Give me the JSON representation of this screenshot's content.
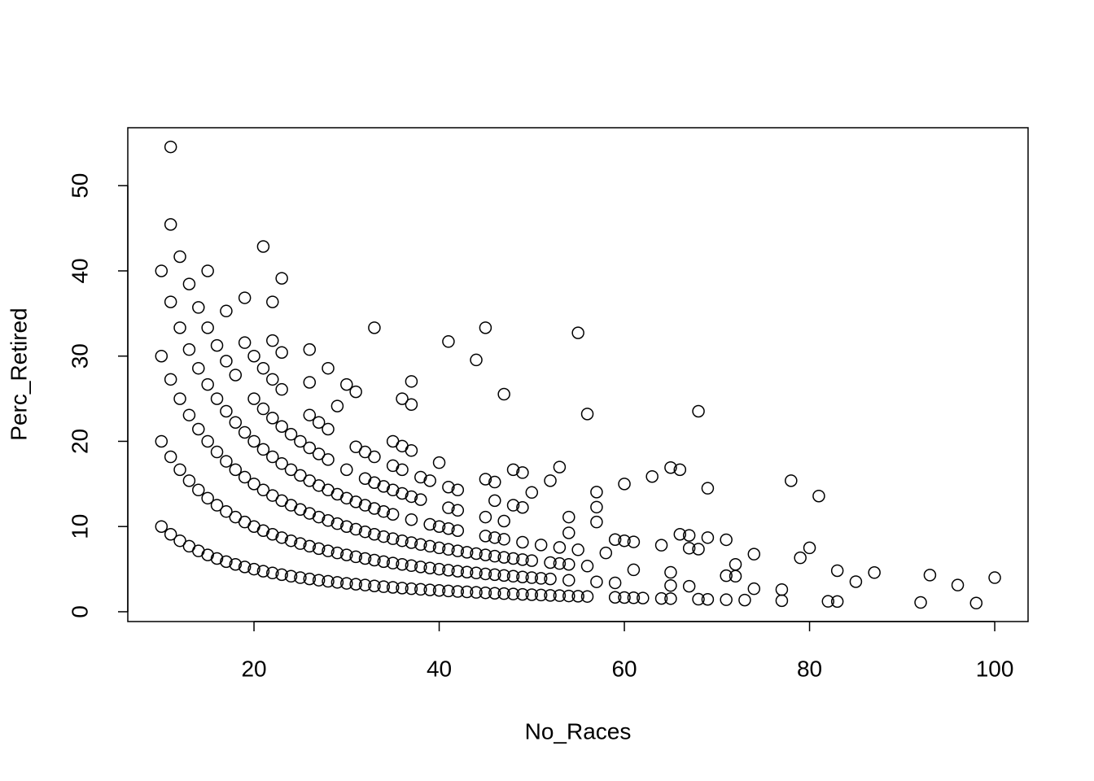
{
  "chart_data": {
    "type": "scatter",
    "x_label": "No_Races",
    "y_label": "Perc_Retired",
    "color": "#000000",
    "xlim": [
      6.37,
      103.6
    ],
    "ylim": [
      -1.15,
      56.8
    ],
    "xticks": [
      20,
      40,
      60,
      80,
      100
    ],
    "yticks": [
      0,
      10,
      20,
      30,
      40,
      50
    ],
    "x": [
      10,
      11,
      12,
      13,
      14,
      15,
      16,
      17,
      18,
      19,
      20,
      21,
      22,
      23,
      24,
      25,
      26,
      27,
      28,
      29,
      30,
      31,
      32,
      33,
      34,
      35,
      36,
      37,
      38,
      39,
      40,
      41,
      42,
      43,
      44,
      45,
      46,
      47,
      48,
      49,
      50,
      51,
      52,
      53,
      54,
      55,
      56,
      59,
      60,
      61,
      62,
      64,
      65,
      68,
      69,
      71,
      73,
      77,
      82,
      83,
      92,
      98,
      10,
      11,
      12,
      13,
      14,
      15,
      16,
      17,
      18,
      19,
      20,
      21,
      22,
      23,
      24,
      25,
      26,
      27,
      28,
      29,
      30,
      31,
      32,
      33,
      34,
      35,
      36,
      37,
      38,
      39,
      40,
      41,
      42,
      43,
      44,
      45,
      46,
      47,
      48,
      49,
      50,
      51,
      52,
      54,
      57,
      59,
      65,
      67,
      74,
      77,
      10,
      11,
      12,
      13,
      14,
      15,
      16,
      17,
      18,
      19,
      20,
      21,
      22,
      23,
      24,
      25,
      26,
      27,
      28,
      29,
      30,
      31,
      32,
      33,
      34,
      35,
      36,
      37,
      38,
      39,
      40,
      41,
      42,
      43,
      44,
      45,
      46,
      47,
      48,
      49,
      50,
      51,
      52,
      53,
      54,
      56,
      11,
      12,
      13,
      14,
      15,
      16,
      17,
      18,
      19,
      20,
      21,
      22,
      23,
      24,
      25,
      26,
      27,
      28,
      29,
      30,
      31,
      32,
      33,
      34,
      35,
      37,
      39,
      40,
      41,
      42,
      45,
      46,
      47,
      49,
      12,
      13,
      14,
      15,
      16,
      17,
      18,
      20,
      21,
      22,
      23,
      24,
      25,
      26,
      27,
      28,
      30,
      32,
      33,
      34,
      35,
      36,
      37,
      38,
      41,
      42,
      45,
      47,
      15,
      17,
      19,
      20,
      21,
      22,
      26,
      27,
      28,
      31,
      32,
      33,
      35,
      36,
      38,
      39,
      41,
      42,
      48,
      49,
      11,
      11,
      10,
      21,
      23,
      19,
      22,
      22,
      23,
      26,
      28,
      30,
      31,
      26,
      29,
      23,
      33,
      41,
      44,
      45,
      55,
      36,
      37,
      37,
      47,
      56,
      35,
      36,
      37,
      40,
      46,
      45,
      48,
      49,
      50,
      52,
      53,
      63,
      65,
      66,
      68,
      69,
      78,
      81,
      57,
      57,
      57,
      54,
      54,
      60,
      59,
      60,
      61,
      64,
      66,
      67,
      67,
      68,
      69,
      71,
      58,
      55,
      53,
      61,
      65,
      71,
      72,
      72,
      74,
      79,
      80,
      83,
      85,
      87,
      93,
      96,
      100,
      46
    ],
    "values": [
      10,
      9.09,
      8.33,
      7.69,
      7.14,
      6.67,
      6.25,
      5.88,
      5.56,
      5.26,
      5,
      4.76,
      4.55,
      4.35,
      4.17,
      4,
      3.85,
      3.7,
      3.57,
      3.45,
      3.33,
      3.23,
      3.13,
      3.03,
      2.94,
      2.86,
      2.78,
      2.7,
      2.63,
      2.56,
      2.5,
      2.44,
      2.38,
      2.33,
      2.27,
      2.22,
      2.17,
      2.13,
      2.08,
      2.04,
      2,
      1.96,
      1.92,
      1.89,
      1.85,
      1.82,
      1.79,
      1.69,
      1.67,
      1.64,
      1.61,
      1.56,
      1.54,
      1.47,
      1.45,
      1.41,
      1.37,
      1.3,
      1.22,
      1.2,
      1.09,
      1.02,
      20,
      18.18,
      16.67,
      15.38,
      14.29,
      13.33,
      12.5,
      11.76,
      11.11,
      10.53,
      10,
      9.52,
      9.09,
      8.7,
      8.33,
      8,
      7.69,
      7.41,
      7.14,
      6.9,
      6.67,
      6.45,
      6.25,
      6.06,
      5.88,
      5.71,
      5.56,
      5.41,
      5.26,
      5.13,
      5,
      4.88,
      4.76,
      4.65,
      4.55,
      4.44,
      4.35,
      4.26,
      4.17,
      4.08,
      4,
      3.92,
      3.85,
      3.7,
      3.51,
      3.39,
      3.08,
      2.99,
      2.7,
      2.6,
      30,
      27.27,
      25,
      23.08,
      21.43,
      20,
      18.75,
      17.65,
      16.67,
      15.79,
      15,
      14.29,
      13.64,
      13.04,
      12.5,
      12,
      11.54,
      11.11,
      10.71,
      10.34,
      10,
      9.68,
      9.38,
      9.09,
      8.82,
      8.57,
      8.33,
      8.11,
      7.89,
      7.69,
      7.5,
      7.32,
      7.14,
      6.98,
      6.82,
      6.67,
      6.52,
      6.38,
      6.25,
      6.12,
      6,
      7.84,
      5.77,
      5.66,
      5.56,
      5.36,
      36.36,
      33.33,
      30.77,
      28.57,
      26.67,
      25,
      23.53,
      22.22,
      21.05,
      20,
      19.05,
      18.18,
      17.39,
      16.67,
      16,
      15.38,
      14.81,
      14.29,
      13.79,
      13.33,
      12.9,
      12.5,
      12.12,
      11.76,
      11.43,
      10.81,
      10.26,
      10,
      9.76,
      9.52,
      8.89,
      8.7,
      8.51,
      8.16,
      41.67,
      38.46,
      35.71,
      33.33,
      31.25,
      29.41,
      27.78,
      25,
      23.81,
      22.73,
      21.74,
      20.83,
      20,
      19.23,
      18.52,
      17.86,
      16.67,
      15.63,
      15.15,
      14.71,
      14.29,
      13.89,
      13.51,
      13.16,
      12.2,
      11.9,
      11.11,
      10.64,
      40,
      35.29,
      31.58,
      30,
      28.57,
      27.27,
      23.08,
      22.22,
      21.43,
      19.35,
      18.75,
      18.18,
      17.14,
      16.67,
      15.79,
      15.38,
      14.63,
      14.29,
      12.5,
      12.24,
      54.55,
      45.45,
      40,
      42.86,
      39.13,
      36.84,
      36.36,
      31.82,
      30.43,
      30.77,
      28.57,
      26.67,
      25.81,
      26.92,
      24.14,
      26.09,
      33.33,
      31.71,
      29.55,
      33.33,
      32.73,
      25,
      24.32,
      27.03,
      25.53,
      23.21,
      20,
      19.44,
      18.92,
      17.5,
      15.22,
      15.56,
      16.67,
      16.33,
      14,
      15.38,
      16.98,
      15.87,
      16.92,
      16.67,
      23.53,
      14.49,
      15.38,
      13.58,
      14.04,
      12.28,
      10.53,
      11.11,
      9.26,
      15,
      8.47,
      8.33,
      8.2,
      7.81,
      9.09,
      8.96,
      7.46,
      7.35,
      8.7,
      8.45,
      6.9,
      7.27,
      7.55,
      4.92,
      4.62,
      4.23,
      4.17,
      5.56,
      6.76,
      6.33,
      7.5,
      4.82,
      3.53,
      4.6,
      4.3,
      3.13,
      4,
      13.04
    ]
  }
}
